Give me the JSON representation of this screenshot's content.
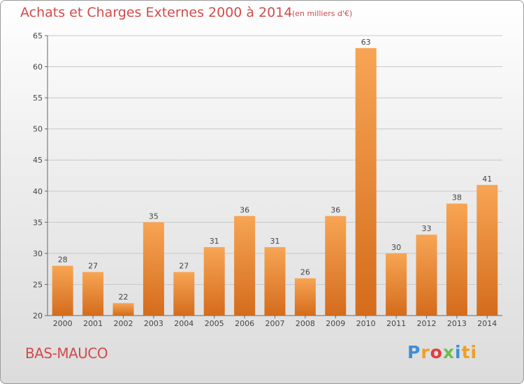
{
  "title": "Achats et Charges Externes 2000 à 2014",
  "subtitle": "(en milliers d'€)",
  "commune": "BAS-MAUCO",
  "logo": "Proxiti",
  "colors": {
    "bar": "#f0953a",
    "bar_dark": "#d06a1a",
    "title": "#d34a4a",
    "grid": "#c8c8c8"
  },
  "chart_data": {
    "type": "bar",
    "title": "Achats et Charges Externes 2000 à 2014",
    "subtitle": "(en milliers d'€)",
    "xlabel": "",
    "ylabel": "",
    "categories": [
      "2000",
      "2001",
      "2002",
      "2003",
      "2004",
      "2005",
      "2006",
      "2007",
      "2008",
      "2009",
      "2010",
      "2011",
      "2012",
      "2013",
      "2014"
    ],
    "values": [
      28,
      27,
      22,
      35,
      27,
      31,
      36,
      31,
      26,
      36,
      63,
      30,
      33,
      38,
      41
    ],
    "ylim": [
      20,
      65
    ],
    "yticks": [
      20,
      25,
      30,
      35,
      40,
      45,
      50,
      55,
      60,
      65
    ],
    "grid": true
  }
}
